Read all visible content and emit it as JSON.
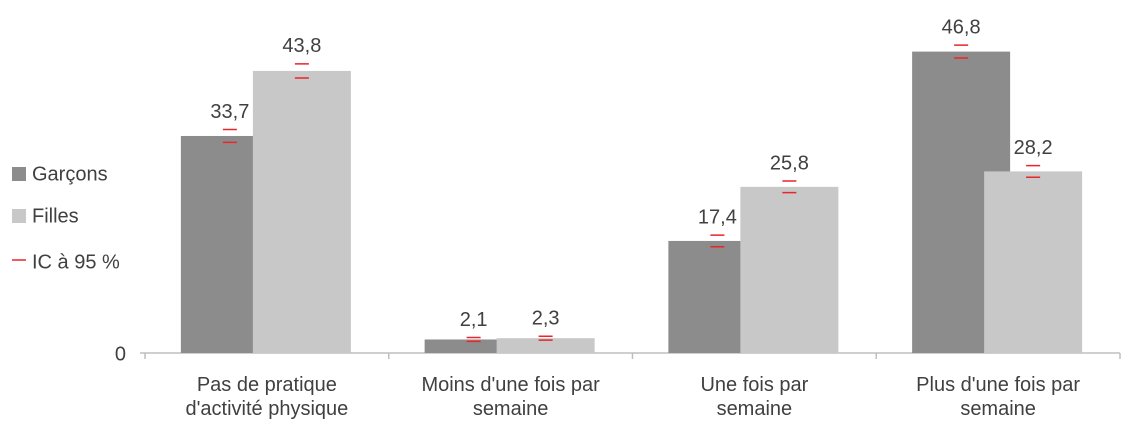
{
  "chart_data": {
    "type": "bar",
    "categories": [
      "Pas de pratique\nd'activité physique",
      "Moins d'une fois par\nsemaine",
      "Une fois par\nsemaine",
      "Plus d'une fois par\nsemaine"
    ],
    "series": [
      {
        "name": "Garçons",
        "color": "#8c8c8c",
        "values": [
          33.7,
          2.1,
          17.4,
          46.8
        ],
        "value_labels": [
          "33,7",
          "2,1",
          "17,4",
          "46,8"
        ],
        "errors": [
          1.0,
          0.3,
          0.9,
          1.0
        ]
      },
      {
        "name": "Filles",
        "color": "#c8c8c8",
        "values": [
          43.8,
          2.3,
          25.8,
          28.2
        ],
        "value_labels": [
          "43,8",
          "2,3",
          "25,8",
          "28,2"
        ],
        "errors": [
          1.1,
          0.3,
          0.9,
          0.9
        ]
      }
    ],
    "error_label": "IC à 95 %",
    "error_color": "#e8262b",
    "ylim": [
      0,
      50
    ],
    "yticks": [
      0
    ],
    "legend": "left"
  }
}
